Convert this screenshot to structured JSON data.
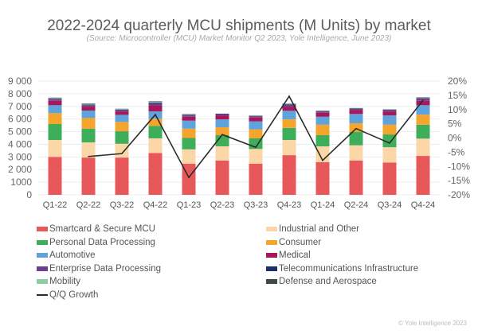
{
  "chart_data": {
    "type": "bar",
    "stacked": true,
    "title": "2022-2024 quarterly MCU shipments (M Units) by market",
    "subtitle": "(Source: Microcontroller (MCU) Market Monitor Q2 2023, Yole Intelligence, June 2023)",
    "xlabel": "",
    "ylabel": "",
    "categories": [
      "Q1-22",
      "Q2-22",
      "Q3-22",
      "Q4-22",
      "Q1-23",
      "Q2-23",
      "Q3-23",
      "Q4-23",
      "Q1-24",
      "Q2-24",
      "Q3-24",
      "Q4-24"
    ],
    "ylim": [
      0,
      9000
    ],
    "yticks": [
      "0",
      "1000",
      "2 000",
      "3 000",
      "4 000",
      "5 000",
      "6 000",
      "7 000",
      "8 000",
      "9 000"
    ],
    "y2lim": [
      -20,
      20
    ],
    "y2ticks": [
      "-20%",
      "-15%",
      "-10%",
      "-5%",
      "0%",
      "5%",
      "10%",
      "15%",
      "20%"
    ],
    "grid": true,
    "legend_position": "bottom",
    "series": [
      {
        "name": "Smartcard & Secure MCU",
        "color": "#e8575a",
        "values": [
          3000,
          2950,
          2950,
          3310,
          2470,
          2720,
          2470,
          3140,
          2580,
          2720,
          2560,
          3080
        ]
      },
      {
        "name": "Industrial and Other",
        "color": "#fbd7a8",
        "values": [
          1340,
          1200,
          1090,
          1160,
          1130,
          1120,
          1160,
          1200,
          1260,
          1200,
          1210,
          1370
        ]
      },
      {
        "name": "Personal Data Processing",
        "color": "#3fae5a",
        "values": [
          1260,
          1090,
          990,
          980,
          900,
          880,
          840,
          960,
          880,
          1050,
          1010,
          1100
        ]
      },
      {
        "name": "Consumer",
        "color": "#f5a52b",
        "values": [
          860,
          840,
          740,
          570,
          740,
          630,
          710,
          670,
          830,
          690,
          770,
          800
        ]
      },
      {
        "name": "Automotive",
        "color": "#5ea3dc",
        "values": [
          630,
          590,
          560,
          580,
          630,
          620,
          630,
          680,
          630,
          740,
          740,
          740
        ]
      },
      {
        "name": "Medical",
        "color": "#a8175a",
        "values": [
          350,
          310,
          270,
          450,
          310,
          320,
          310,
          330,
          320,
          300,
          310,
          350
        ]
      },
      {
        "name": "Enterprise Data Processing",
        "color": "#6e3f8e",
        "values": [
          120,
          120,
          110,
          200,
          120,
          100,
          100,
          150,
          100,
          100,
          100,
          180
        ]
      },
      {
        "name": "Telecommunications Infrastructure",
        "color": "#1c2e6e",
        "values": [
          40,
          40,
          30,
          50,
          30,
          30,
          30,
          40,
          30,
          30,
          30,
          40
        ]
      },
      {
        "name": "Mobility",
        "color": "#8fcca4",
        "values": [
          50,
          50,
          40,
          60,
          40,
          10,
          30,
          40,
          20,
          20,
          20,
          30
        ]
      },
      {
        "name": "Defense and Aerospace",
        "color": "#3f4a45",
        "values": [
          40,
          40,
          30,
          40,
          30,
          0,
          10,
          20,
          20,
          20,
          20,
          30
        ]
      }
    ],
    "line_series": {
      "name": "Q/Q Growth",
      "color": "#2a2a2a",
      "axis": "right",
      "unit": "%",
      "values": [
        null,
        -6.5,
        -5.5,
        8.2,
        -13.9,
        1.2,
        -3.3,
        14.7,
        -7.9,
        3.3,
        -1.8,
        13.3
      ]
    },
    "legend_order": [
      "Smartcard & Secure MCU",
      "Industrial and Other",
      "Personal Data Processing",
      "Consumer",
      "Automotive",
      "Medical",
      "Enterprise Data Processing",
      "Telecommunications Infrastructure",
      "Mobility",
      "Defense and Aerospace",
      "Q/Q Growth"
    ]
  },
  "footer": {
    "copyright": "© Yole Intelligence 2023"
  }
}
